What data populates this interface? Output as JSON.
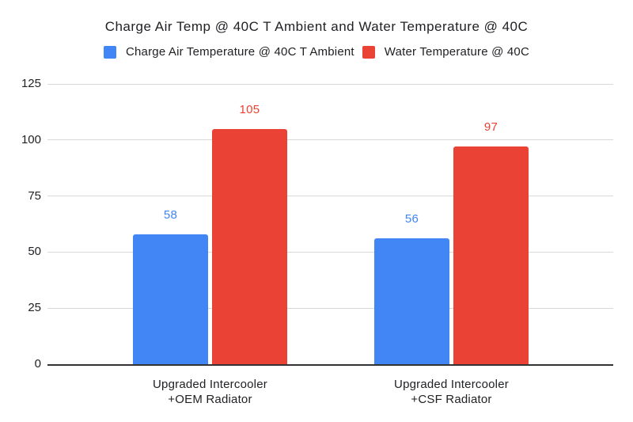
{
  "chart_data": {
    "type": "bar",
    "title": "Charge Air Temp @ 40C T Ambient and Water Temperature @ 40C",
    "categories": [
      "Upgraded Intercooler +OEM Radiator",
      "Upgraded Intercooler +CSF Radiator"
    ],
    "category_lines": [
      [
        "Upgraded Intercooler",
        "+OEM Radiator"
      ],
      [
        "Upgraded Intercooler",
        "+CSF Radiator"
      ]
    ],
    "series": [
      {
        "name": "Charge Air Temperature @ 40C T Ambient",
        "color": "#4285F4",
        "values": [
          58,
          56
        ]
      },
      {
        "name": "Water Temperature @ 40C",
        "color": "#EA4335",
        "values": [
          105,
          97
        ]
      }
    ],
    "yticks": [
      0,
      25,
      50,
      75,
      100,
      125
    ],
    "ylim": [
      0,
      125
    ],
    "xlabel": "",
    "ylabel": "",
    "grid": true,
    "legend_position": "top",
    "colors": {
      "gridline": "#d9d9d9",
      "axis_line": "#333333",
      "text": "#202124",
      "background": "#ffffff"
    }
  }
}
